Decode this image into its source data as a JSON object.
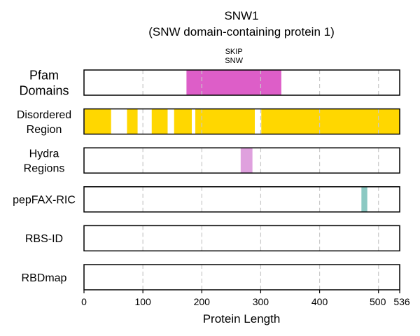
{
  "chart_data": {
    "type": "bar",
    "title": "SNW1",
    "subtitle": "(SNW domain-containing protein 1)",
    "xlabel": "Protein Length",
    "xlim": [
      0,
      536
    ],
    "xticks": [
      0,
      100,
      200,
      300,
      400,
      500,
      536
    ],
    "grid": true,
    "tracks": [
      {
        "name": "Pfam Domains",
        "label_lines": [
          "Pfam",
          "Domains"
        ],
        "color": "#dd5ec8",
        "segments": [
          {
            "start": 174,
            "end": 335,
            "label_lines": [
              "SKIP",
              "SNW"
            ]
          }
        ]
      },
      {
        "name": "Disordered Region",
        "label_lines": [
          "Disordered",
          "Region"
        ],
        "color": "#ffd700",
        "segments": [
          {
            "start": 1,
            "end": 46
          },
          {
            "start": 73,
            "end": 91
          },
          {
            "start": 115,
            "end": 142
          },
          {
            "start": 153,
            "end": 183
          },
          {
            "start": 189,
            "end": 290
          },
          {
            "start": 301,
            "end": 536
          }
        ]
      },
      {
        "name": "Hydra Regions",
        "label_lines": [
          "Hydra",
          "Regions"
        ],
        "color": "#dfa1de",
        "segments": [
          {
            "start": 266,
            "end": 286
          }
        ]
      },
      {
        "name": "pepFAX-RIC",
        "label_lines": [
          "pepFAX-RIC"
        ],
        "color": "#8cc9c3",
        "segments": [
          {
            "start": 471,
            "end": 481
          }
        ]
      },
      {
        "name": "RBS-ID",
        "label_lines": [
          "RBS-ID"
        ],
        "color": "#8cc9c3",
        "segments": []
      },
      {
        "name": "RBDmap",
        "label_lines": [
          "RBDmap"
        ],
        "color": "#8cc9c3",
        "segments": []
      }
    ]
  }
}
